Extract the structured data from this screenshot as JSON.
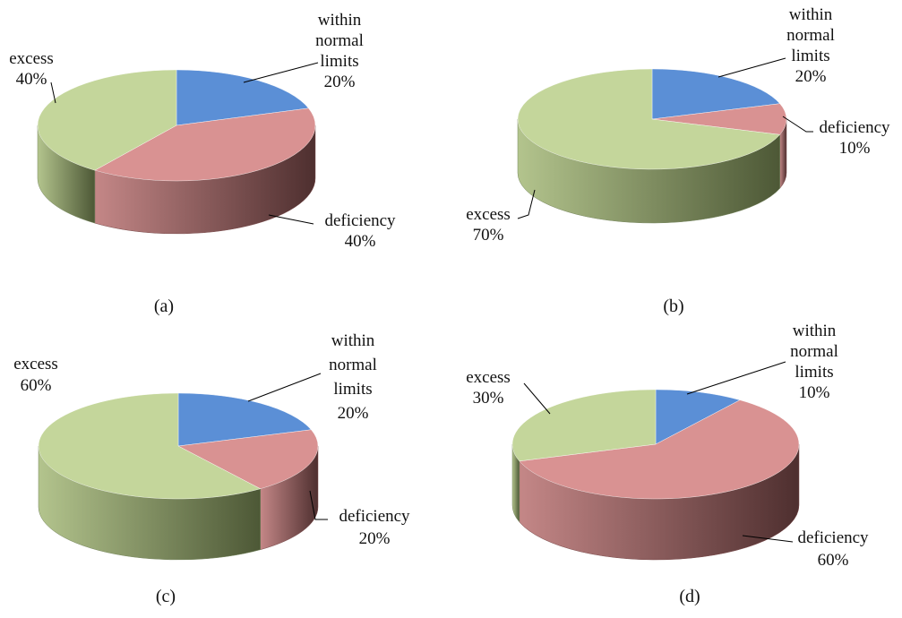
{
  "colors": {
    "within": "#5b8fd6",
    "deficiency": "#d99292",
    "excess": "#c4d69b",
    "within_side": "#3d6290",
    "deficiency_side": "#7a4a4a",
    "excess_side": "#788860"
  },
  "chart_data": [
    {
      "type": "pie",
      "caption": "(a)",
      "slices": [
        {
          "key": "within",
          "name": "within normal limits",
          "value": 20,
          "label_lines": [
            "within",
            "normal",
            "limits"
          ],
          "pct": "20%"
        },
        {
          "key": "deficiency",
          "name": "deficiency",
          "value": 40,
          "label_lines": [
            "deficiency"
          ],
          "pct": "40%"
        },
        {
          "key": "excess",
          "name": "excess",
          "value": 40,
          "label_lines": [
            "excess"
          ],
          "pct": "40%"
        }
      ]
    },
    {
      "type": "pie",
      "caption": "(b)",
      "slices": [
        {
          "key": "within",
          "name": "within normal limits",
          "value": 20,
          "label_lines": [
            "within",
            "normal",
            "limits"
          ],
          "pct": "20%"
        },
        {
          "key": "deficiency",
          "name": "deficiency",
          "value": 10,
          "label_lines": [
            "deficiency"
          ],
          "pct": "10%"
        },
        {
          "key": "excess",
          "name": "excess",
          "value": 70,
          "label_lines": [
            "excess"
          ],
          "pct": "70%"
        }
      ]
    },
    {
      "type": "pie",
      "caption": "(c)",
      "slices": [
        {
          "key": "within",
          "name": "within normal limits",
          "value": 20,
          "label_lines": [
            "within",
            "normal",
            "limits"
          ],
          "pct": "20%"
        },
        {
          "key": "deficiency",
          "name": "deficiency",
          "value": 20,
          "label_lines": [
            "deficiency"
          ],
          "pct": "20%"
        },
        {
          "key": "excess",
          "name": "excess",
          "value": 60,
          "label_lines": [
            "excess"
          ],
          "pct": "60%"
        }
      ]
    },
    {
      "type": "pie",
      "caption": "(d)",
      "slices": [
        {
          "key": "within",
          "name": "within normal limits",
          "value": 10,
          "label_lines": [
            "within",
            "normal",
            "limits"
          ],
          "pct": "10%"
        },
        {
          "key": "deficiency",
          "name": "deficiency",
          "value": 60,
          "label_lines": [
            "deficiency"
          ],
          "pct": "60%"
        },
        {
          "key": "excess",
          "name": "excess",
          "value": 30,
          "label_lines": [
            "excess"
          ],
          "pct": "30%"
        }
      ]
    }
  ]
}
